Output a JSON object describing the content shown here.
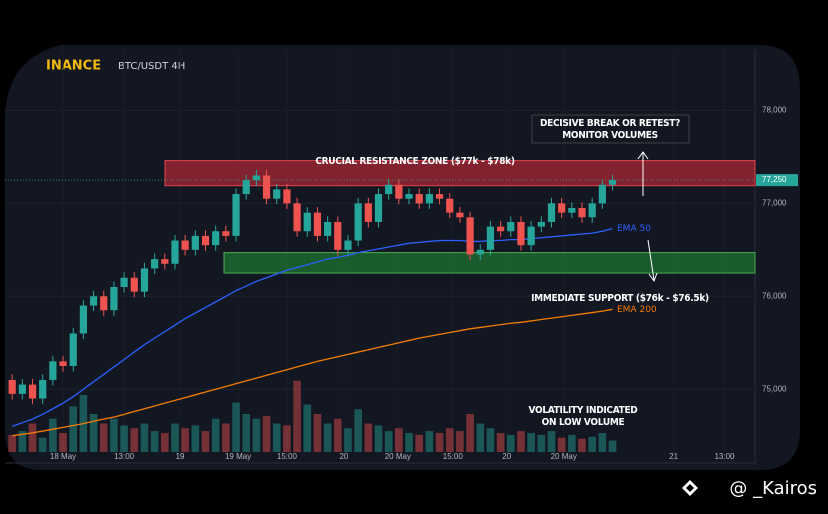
{
  "chart_data": {
    "type": "candlestick",
    "brand": "INANCE",
    "symbol": "BTC/USDT 4H",
    "watermark": "@ _Kairos",
    "ylim": [
      74400,
      78650
    ],
    "yticks": [
      {
        "value": 75000,
        "label": "75,000"
      },
      {
        "value": 76000,
        "label": "76,000"
      },
      {
        "value": 77000,
        "label": "77,000"
      },
      {
        "value": 78000,
        "label": "78,000"
      }
    ],
    "xlim": [
      -1,
      73
    ],
    "xticks": [
      {
        "value": 5,
        "label": "18 May"
      },
      {
        "value": 11,
        "label": "13:00"
      },
      {
        "value": 16.5,
        "label": "19"
      },
      {
        "value": 22.2,
        "label": "19 May"
      },
      {
        "value": 27,
        "label": "15:00"
      },
      {
        "value": 32.6,
        "label": "20"
      },
      {
        "value": 37.9,
        "label": "20 May"
      },
      {
        "value": 43.3,
        "label": "15:00"
      },
      {
        "value": 48.6,
        "label": "20"
      },
      {
        "value": 54.2,
        "label": "20 May"
      },
      {
        "value": 65,
        "label": "21"
      },
      {
        "value": 70,
        "label": "13:00"
      }
    ],
    "up_color": "#26a69a",
    "down_color": "#ef5350",
    "open": [
      75100,
      74950,
      75050,
      74900,
      75100,
      75300,
      75250,
      75600,
      75900,
      76000,
      75850,
      76100,
      76200,
      76050,
      76300,
      76400,
      76350,
      76600,
      76500,
      76650,
      76550,
      76700,
      76650,
      77100,
      77250,
      77300,
      77050,
      77150,
      77000,
      76700,
      76900,
      76650,
      76800,
      76500,
      76600,
      77000,
      76800,
      77100,
      77200,
      77050,
      77100,
      77000,
      77100,
      77050,
      76900,
      76850,
      76450,
      76500,
      76750,
      76700,
      76800,
      76550,
      76750,
      76800,
      77000,
      76900,
      76950,
      76850,
      77000,
      77200
    ],
    "high": [
      75160,
      75110,
      75110,
      75160,
      75360,
      75360,
      75660,
      75960,
      76060,
      76060,
      76160,
      76260,
      76260,
      76360,
      76460,
      76460,
      76660,
      76660,
      76710,
      76710,
      76760,
      76760,
      77160,
      77310,
      77360,
      77360,
      77210,
      77210,
      77060,
      76960,
      76960,
      76860,
      76860,
      76660,
      77060,
      77060,
      77160,
      77260,
      77260,
      77160,
      77160,
      77160,
      77160,
      77110,
      76960,
      76910,
      76560,
      76810,
      76810,
      76860,
      76860,
      76810,
      76860,
      77060,
      77060,
      77010,
      77010,
      77060,
      77260,
      77310
    ],
    "low": [
      74890,
      74890,
      74840,
      74840,
      75040,
      75190,
      75190,
      75540,
      75840,
      75790,
      75790,
      76040,
      75990,
      75990,
      76240,
      76290,
      76290,
      76440,
      76440,
      76490,
      76490,
      76590,
      76590,
      77040,
      77190,
      76990,
      76990,
      76940,
      76640,
      76640,
      76590,
      76590,
      76440,
      76440,
      76540,
      76740,
      76740,
      77040,
      76990,
      76990,
      76940,
      76940,
      76990,
      76840,
      76790,
      76390,
      76390,
      76440,
      76640,
      76640,
      76490,
      76490,
      76690,
      76740,
      76840,
      76840,
      76790,
      76790,
      76940,
      77140
    ],
    "close": [
      74950,
      75050,
      74900,
      75100,
      75300,
      75250,
      75600,
      75900,
      76000,
      75850,
      76100,
      76200,
      76050,
      76300,
      76400,
      76350,
      76600,
      76500,
      76650,
      76550,
      76700,
      76650,
      77100,
      77250,
      77300,
      77050,
      77150,
      77000,
      76700,
      76900,
      76650,
      76800,
      76500,
      76600,
      77000,
      76800,
      77100,
      77200,
      77050,
      77100,
      77000,
      77100,
      77050,
      76900,
      76850,
      76450,
      76500,
      76750,
      76700,
      76800,
      76550,
      76750,
      76800,
      77000,
      76900,
      76950,
      76850,
      77000,
      77200,
      77250
    ],
    "volume": [
      18,
      22,
      30,
      15,
      35,
      20,
      48,
      60,
      40,
      30,
      35,
      28,
      25,
      30,
      22,
      20,
      30,
      25,
      28,
      22,
      35,
      30,
      52,
      40,
      35,
      38,
      30,
      28,
      75,
      50,
      40,
      30,
      35,
      25,
      45,
      30,
      28,
      22,
      25,
      20,
      18,
      22,
      20,
      25,
      22,
      40,
      30,
      25,
      20,
      18,
      22,
      20,
      18,
      22,
      15,
      18,
      14,
      16,
      20,
      12
    ],
    "volume_ylim": [
      0,
      100
    ],
    "series": [
      {
        "name": "EMA 50",
        "color": "#2962ff",
        "values": [
          74600,
          74640,
          74680,
          74730,
          74790,
          74850,
          74920,
          75000,
          75080,
          75160,
          75240,
          75320,
          75400,
          75480,
          75550,
          75620,
          75690,
          75760,
          75820,
          75880,
          75940,
          76000,
          76060,
          76110,
          76160,
          76200,
          76240,
          76280,
          76310,
          76340,
          76370,
          76400,
          76420,
          76440,
          76470,
          76490,
          76510,
          76530,
          76550,
          76570,
          76580,
          76590,
          76600,
          76600,
          76600,
          76590,
          76590,
          76600,
          76600,
          76610,
          76610,
          76620,
          76630,
          76640,
          76650,
          76660,
          76670,
          76680,
          76700,
          76730
        ]
      },
      {
        "name": "EMA 200",
        "color": "#f57c00",
        "values": [
          74500,
          74515,
          74530,
          74550,
          74570,
          74590,
          74610,
          74630,
          74655,
          74680,
          74700,
          74730,
          74760,
          74790,
          74820,
          74850,
          74880,
          74910,
          74940,
          74970,
          75000,
          75030,
          75060,
          75090,
          75120,
          75150,
          75180,
          75210,
          75240,
          75270,
          75300,
          75325,
          75350,
          75375,
          75400,
          75425,
          75450,
          75475,
          75500,
          75525,
          75550,
          75570,
          75590,
          75610,
          75630,
          75650,
          75665,
          75680,
          75695,
          75710,
          75720,
          75735,
          75750,
          75765,
          75780,
          75795,
          75810,
          75825,
          75840,
          75860
        ]
      }
    ],
    "last_price": {
      "value": 77250,
      "label": "77,250"
    },
    "resistance_zone": {
      "label": "CRUCIAL RESISTANCE ZONE ($77k - $78k)",
      "range": [
        77190,
        77460
      ]
    },
    "support_zone": {
      "label": "IMMEDIATE SUPPORT ($76k - $76.5k)",
      "range": [
        76250,
        76470
      ]
    },
    "annotations": [
      "DECISIVE BREAK OR RETEST?",
      "MONITOR VOLUMES",
      "VOLATILITY INDICATED",
      "ON LOW VOLUME"
    ]
  }
}
